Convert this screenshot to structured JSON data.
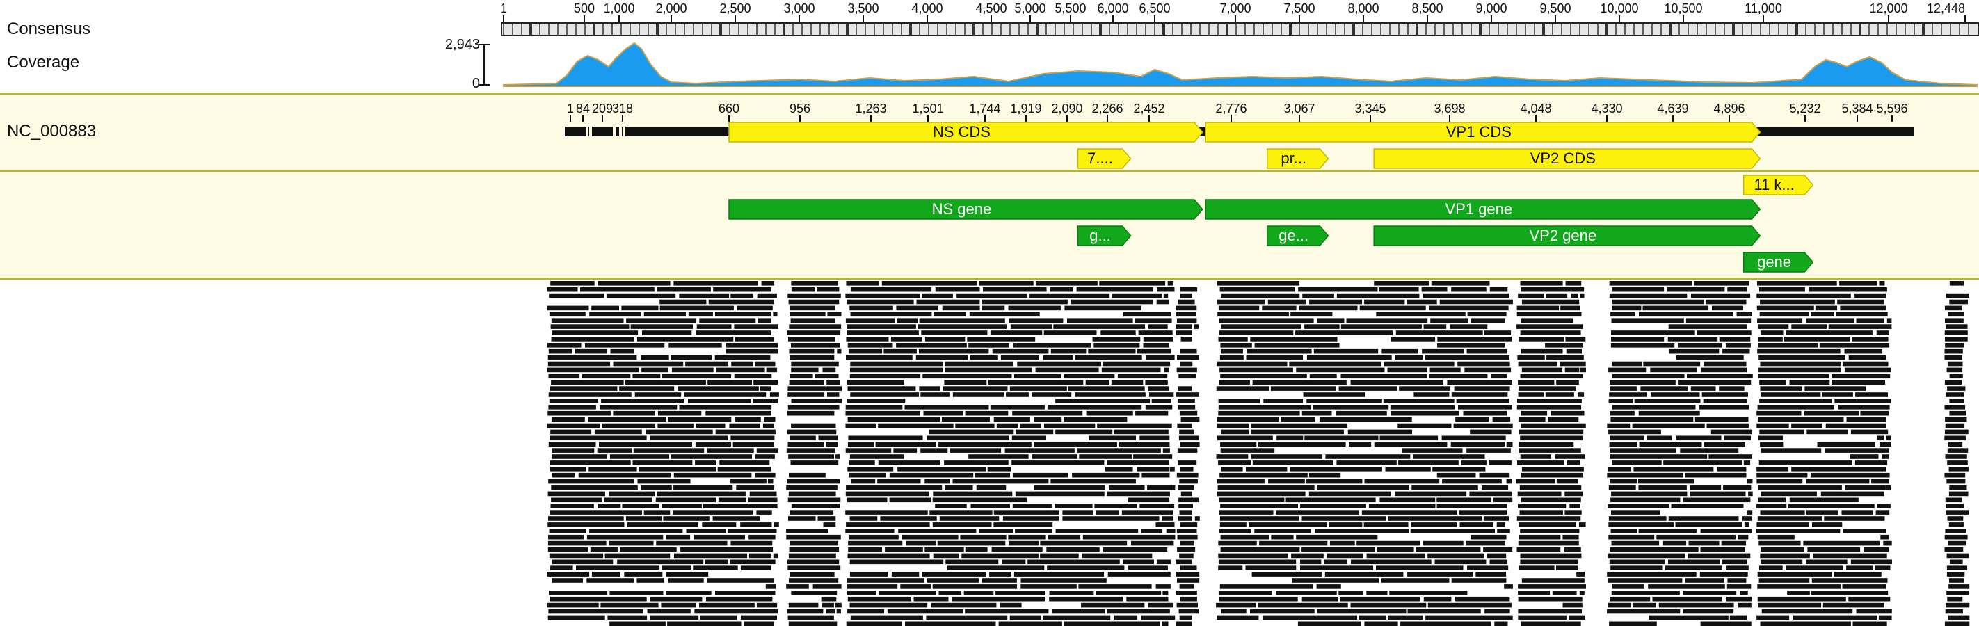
{
  "tracks": {
    "consensus_label": "Consensus",
    "coverage_label": "Coverage",
    "reference_label": "NC_000883"
  },
  "coverage": {
    "max_label": "2,943",
    "zero_label": "0"
  },
  "consensus_ruler": {
    "ticks": [
      {
        "label": "1",
        "value": 1
      },
      {
        "label": "500",
        "value": 500
      },
      {
        "label": "1,000",
        "value": 1000
      },
      {
        "label": "2,000",
        "value": 2000
      },
      {
        "label": "2,500",
        "value": 2500
      },
      {
        "label": "3,000",
        "value": 3000
      },
      {
        "label": "3,500",
        "value": 3500
      },
      {
        "label": "4,000",
        "value": 4000
      },
      {
        "label": "4,500",
        "value": 4500
      },
      {
        "label": "5,000",
        "value": 5000
      },
      {
        "label": "5,500",
        "value": 5500
      },
      {
        "label": "6,000",
        "value": 6000
      },
      {
        "label": "6,500",
        "value": 6500
      },
      {
        "label": "7,000",
        "value": 7000
      },
      {
        "label": "7,500",
        "value": 7500
      },
      {
        "label": "8,000",
        "value": 8000
      },
      {
        "label": "8,500",
        "value": 8500
      },
      {
        "label": "9,000",
        "value": 9000
      },
      {
        "label": "9,500",
        "value": 9500
      },
      {
        "label": "10,000",
        "value": 10000
      },
      {
        "label": "10,500",
        "value": 10500
      },
      {
        "label": "11,000",
        "value": 11000
      },
      {
        "label": "12,000",
        "value": 12000
      },
      {
        "label": "12,448",
        "value": 12448
      }
    ]
  },
  "reference_ruler": {
    "ticks": [
      {
        "label": "1",
        "value": 1
      },
      {
        "label": "84",
        "value": 84
      },
      {
        "label": "209",
        "value": 209
      },
      {
        "label": "318",
        "value": 318
      },
      {
        "label": "660",
        "value": 660
      },
      {
        "label": "956",
        "value": 956
      },
      {
        "label": "1,263",
        "value": 1263
      },
      {
        "label": "1,501",
        "value": 1501
      },
      {
        "label": "1,744",
        "value": 1744
      },
      {
        "label": "1,919",
        "value": 1919
      },
      {
        "label": "2,090",
        "value": 2090
      },
      {
        "label": "2,266",
        "value": 2266
      },
      {
        "label": "2,452",
        "value": 2452
      },
      {
        "label": "2,776",
        "value": 2776
      },
      {
        "label": "3,067",
        "value": 3067
      },
      {
        "label": "3,345",
        "value": 3345
      },
      {
        "label": "3,698",
        "value": 3698
      },
      {
        "label": "4,048",
        "value": 4048
      },
      {
        "label": "4,330",
        "value": 4330
      },
      {
        "label": "4,639",
        "value": 4639
      },
      {
        "label": "4,896",
        "value": 4896
      },
      {
        "label": "5,232",
        "value": 5232
      },
      {
        "label": "5,384",
        "value": 5384
      },
      {
        "label": "5,596",
        "value": 5596
      }
    ]
  },
  "cds_annotations": [
    {
      "label": "NS CDS",
      "start": 660,
      "end": 2663,
      "row": 0
    },
    {
      "label": "VP1 CDS",
      "start": 2675,
      "end": 5033,
      "row": 0
    },
    {
      "label": "7....",
      "start": 2137,
      "end": 2370,
      "row": 1
    },
    {
      "label": "pr...",
      "start": 2930,
      "end": 3180,
      "row": 1
    },
    {
      "label": "VP2 CDS",
      "start": 3361,
      "end": 5033,
      "row": 1
    },
    {
      "label": "11 k...",
      "start": 4960,
      "end": 5255,
      "row": 2
    }
  ],
  "gene_annotations": [
    {
      "label": "NS gene",
      "start": 660,
      "end": 2663,
      "row": 0
    },
    {
      "label": "VP1 gene",
      "start": 2675,
      "end": 5033,
      "row": 0
    },
    {
      "label": "g...",
      "start": 2137,
      "end": 2370,
      "row": 1
    },
    {
      "label": "ge...",
      "start": 2930,
      "end": 3180,
      "row": 1
    },
    {
      "label": "VP2 gene",
      "start": 3361,
      "end": 5033,
      "row": 1
    },
    {
      "label": "gene",
      "start": 4960,
      "end": 5255,
      "row": 2
    }
  ],
  "colors": {
    "coverage_fill": "#1a9bf0",
    "coverage_edge": "#c9a04a",
    "cds_fill": "#fbf10b",
    "cds_stroke": "#c6b80a",
    "gene_fill": "#12a81c",
    "gene_stroke": "#0d7a14",
    "annotation_band": "#fdfbe4",
    "band_line": "#b7b43a",
    "read": "#111111"
  }
}
